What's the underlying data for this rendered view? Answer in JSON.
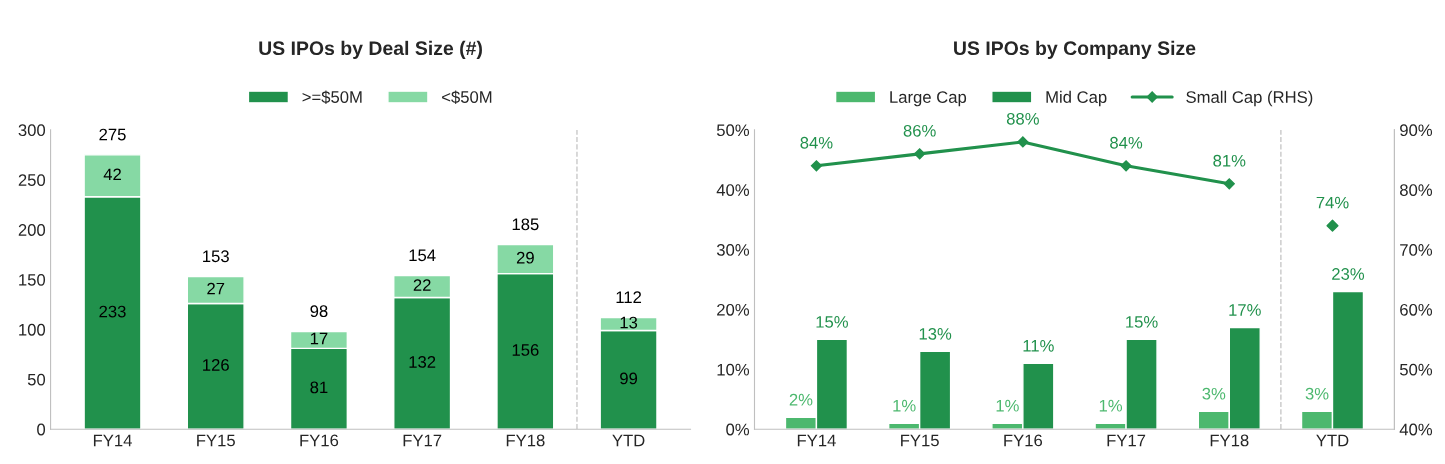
{
  "chart_data": [
    {
      "type": "bar",
      "title": "US IPOs by Deal Size (#)",
      "categories": [
        "FY14",
        "FY15",
        "FY16",
        "FY17",
        "FY18",
        "YTD"
      ],
      "stacked": true,
      "data_labels": true,
      "legend": "top",
      "series": [
        {
          "name": ">=$50M",
          "color": "#21914c",
          "values": [
            233,
            126,
            81,
            132,
            156,
            99
          ]
        },
        {
          "name": "<$50M",
          "color": "#86d9a4",
          "values": [
            42,
            27,
            17,
            22,
            29,
            13
          ]
        }
      ],
      "totals": [
        "275",
        "153",
        "98",
        "154",
        "185",
        "112"
      ],
      "ylim": [
        0,
        300
      ],
      "yticks": [
        0,
        50,
        100,
        150,
        200,
        250,
        300
      ]
    },
    {
      "type": "bar",
      "title": "US IPOs by Company Size",
      "categories": [
        "FY14",
        "FY15",
        "FY16",
        "FY17",
        "FY18",
        "YTD"
      ],
      "legend": "top",
      "series": [
        {
          "name": "Large Cap",
          "color": "#4cb86e",
          "values": [
            2,
            1,
            1,
            1,
            3,
            3
          ],
          "value_labels": [
            "2%",
            "1%",
            "1%",
            "1%",
            "3%",
            "3%"
          ]
        },
        {
          "name": "Mid Cap",
          "color": "#21914c",
          "values": [
            15,
            13,
            11,
            15,
            17,
            23
          ],
          "value_labels": [
            "15%",
            "13%",
            "11%",
            "15%",
            "17%",
            "23%"
          ]
        },
        {
          "name": "Small Cap (RHS)",
          "type": "line",
          "axis": "y2",
          "marker": "diamond",
          "color": "#21914c",
          "values": [
            84,
            86,
            88,
            84,
            81,
            null
          ],
          "value_labels": [
            "84%",
            "86%",
            "88%",
            "84%",
            "81%",
            null
          ]
        },
        {
          "type": "scatter",
          "axis": "y2",
          "marker": "diamond",
          "color": "#21914c",
          "values": [
            null,
            null,
            null,
            null,
            null,
            74
          ],
          "value_labels": [
            null,
            null,
            null,
            null,
            null,
            "74%"
          ]
        }
      ],
      "ylim": [
        0,
        50
      ],
      "yticks": [
        {
          "value": 0,
          "label": "0%"
        },
        {
          "value": 10,
          "label": "10%"
        },
        {
          "value": 20,
          "label": "20%"
        },
        {
          "value": 30,
          "label": "30%"
        },
        {
          "value": 40,
          "label": "40%"
        },
        {
          "value": 50,
          "label": "50%"
        }
      ],
      "y2lim": [
        40,
        90
      ],
      "y2ticks": [
        {
          "value": 40,
          "label": "40%"
        },
        {
          "value": 50,
          "label": "50%"
        },
        {
          "value": 60,
          "label": "60%"
        },
        {
          "value": 70,
          "label": "70%"
        },
        {
          "value": 80,
          "label": "80%"
        },
        {
          "value": 90,
          "label": "90%"
        }
      ]
    }
  ]
}
